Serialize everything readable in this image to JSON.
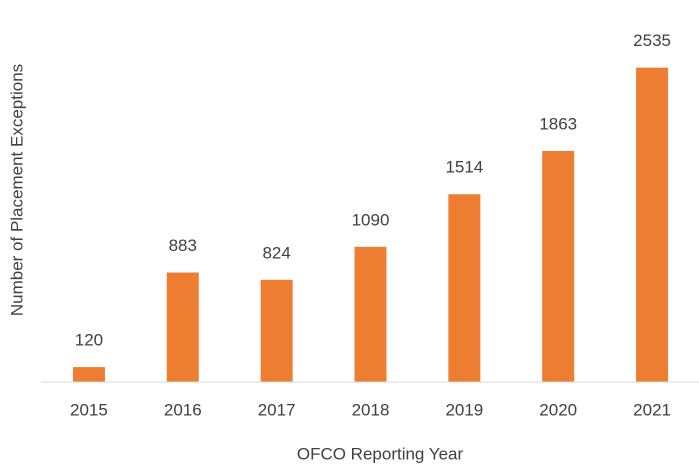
{
  "chart_data": {
    "type": "bar",
    "x_label": "OFCO Reporting Year",
    "y_label": "Number of Placement Exceptions",
    "categories": [
      "2015",
      "2016",
      "2017",
      "2018",
      "2019",
      "2020",
      "2021"
    ],
    "values": [
      120,
      883,
      824,
      1090,
      1514,
      1863,
      2535
    ],
    "color": "#ed7d31",
    "ylim": [
      0,
      3000
    ],
    "grid": false
  }
}
